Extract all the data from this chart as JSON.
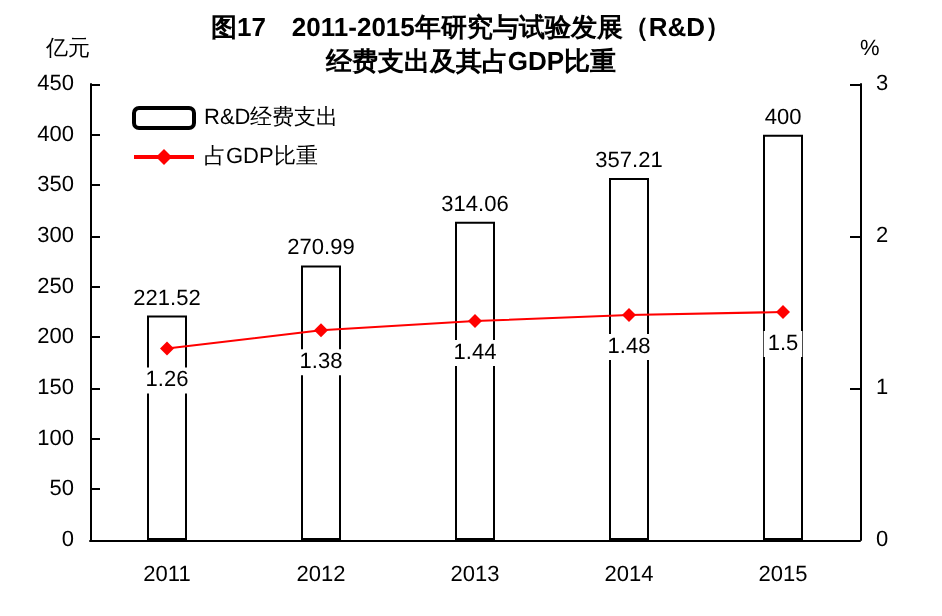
{
  "chart_data": {
    "type": "bar",
    "title": "图17　2011-2015年研究与试验发展（R&D）",
    "subtitle": "经费支出及其占GDP比重",
    "ylabel": "亿元",
    "y2label": "%",
    "categories": [
      "2011",
      "2012",
      "2013",
      "2014",
      "2015"
    ],
    "series": [
      {
        "name": "R&D经费支出",
        "color": "#ffffff",
        "values": [
          221.52,
          270.99,
          314.06,
          357.21,
          400
        ]
      },
      {
        "name": "占GDP比重",
        "type": "line",
        "axis": "y2",
        "color": "#ff0000",
        "marker": "diamond",
        "values": [
          1.26,
          1.38,
          1.44,
          1.48,
          1.5
        ]
      }
    ],
    "ylim": [
      0,
      450
    ],
    "yticks": [
      0,
      50,
      100,
      150,
      200,
      250,
      300,
      350,
      400,
      450
    ],
    "y2lim": [
      0,
      3
    ],
    "y2ticks": [
      0,
      1,
      2,
      3
    ],
    "data_labels": true,
    "legend": "top left",
    "grid": false
  }
}
